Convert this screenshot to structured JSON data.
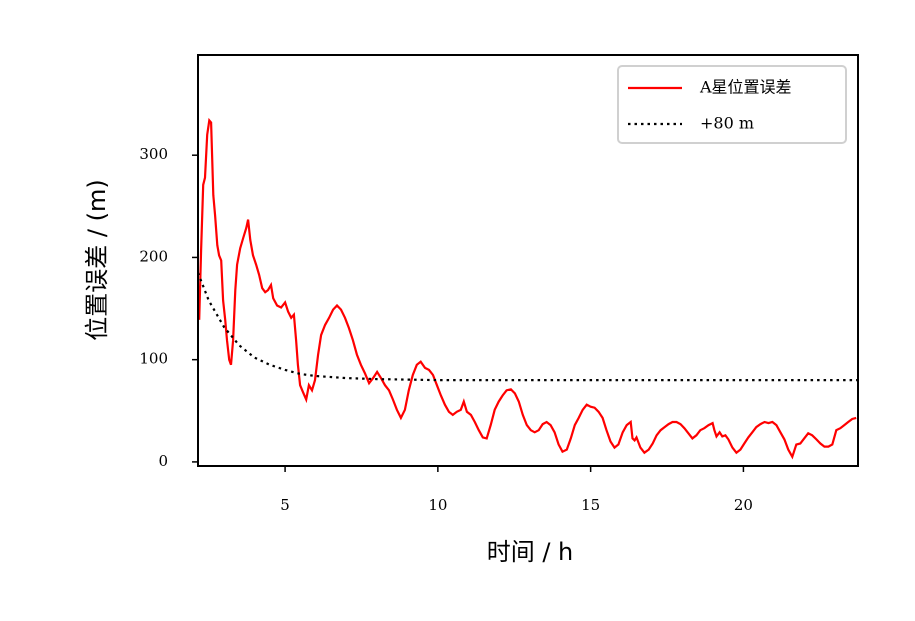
{
  "chart_data": {
    "type": "line",
    "xlabel": "时间 / h",
    "ylabel": "位置误差 / (m)",
    "xlim": [
      2.15,
      23.75
    ],
    "ylim": [
      -4,
      398
    ],
    "xticks": [
      5,
      10,
      15,
      20
    ],
    "yticks": [
      0,
      100,
      200,
      300
    ],
    "legend": "upper right",
    "series": [
      {
        "name": "A星位置误差",
        "color": "#ff0000",
        "style": "solid",
        "x": [
          2.19,
          2.25,
          2.32,
          2.38,
          2.45,
          2.52,
          2.58,
          2.65,
          2.71,
          2.78,
          2.84,
          2.91,
          2.97,
          3.04,
          3.1,
          3.17,
          3.23,
          3.3,
          3.37,
          3.43,
          3.53,
          3.63,
          3.73,
          3.79,
          3.86,
          3.95,
          4.05,
          4.15,
          4.25,
          4.35,
          4.44,
          4.54,
          4.61,
          4.74,
          4.87,
          5.0,
          5.1,
          5.2,
          5.29,
          5.36,
          5.42,
          5.49,
          5.59,
          5.69,
          5.78,
          5.88,
          5.98,
          6.08,
          6.18,
          6.31,
          6.44,
          6.57,
          6.7,
          6.83,
          6.96,
          7.09,
          7.22,
          7.35,
          7.48,
          7.61,
          7.75,
          7.88,
          8.01,
          8.14,
          8.27,
          8.4,
          8.53,
          8.66,
          8.79,
          8.92,
          9.05,
          9.18,
          9.31,
          9.44,
          9.58,
          9.71,
          9.84,
          9.97,
          10.1,
          10.23,
          10.36,
          10.49,
          10.62,
          10.75,
          10.85,
          10.95,
          11.08,
          11.21,
          11.34,
          11.47,
          11.6,
          11.73,
          11.86,
          11.99,
          12.12,
          12.25,
          12.39,
          12.52,
          12.65,
          12.78,
          12.91,
          13.04,
          13.17,
          13.3,
          13.43,
          13.56,
          13.69,
          13.82,
          13.95,
          14.08,
          14.22,
          14.35,
          14.48,
          14.61,
          14.74,
          14.87,
          15.0,
          15.13,
          15.26,
          15.39,
          15.52,
          15.65,
          15.78,
          15.91,
          16.05,
          16.18,
          16.31,
          16.37,
          16.44,
          16.5,
          16.63,
          16.76,
          16.9,
          17.03,
          17.16,
          17.29,
          17.42,
          17.55,
          17.68,
          17.81,
          17.94,
          18.07,
          18.2,
          18.33,
          18.46,
          18.59,
          18.72,
          18.86,
          18.99,
          19.05,
          19.12,
          19.22,
          19.31,
          19.41,
          19.51,
          19.64,
          19.77,
          19.9,
          20.03,
          20.16,
          20.29,
          20.42,
          20.56,
          20.69,
          20.82,
          20.95,
          21.08,
          21.21,
          21.34,
          21.47,
          21.6,
          21.73,
          21.86,
          21.99,
          22.12,
          22.25,
          22.39,
          22.52,
          22.65,
          22.78,
          22.91,
          23.04,
          23.17,
          23.3,
          23.43,
          23.56,
          23.69
        ],
        "values": [
          139,
          207,
          271,
          278,
          320,
          334,
          332,
          261,
          241,
          212,
          202,
          197,
          158,
          139,
          119,
          100,
          95,
          119,
          168,
          193,
          209,
          219,
          229,
          237,
          217,
          202,
          193,
          183,
          170,
          166,
          168,
          173,
          160,
          153,
          151,
          156,
          147,
          141,
          144,
          119,
          95,
          75,
          68,
          61,
          75,
          70,
          80,
          105,
          124,
          134,
          141,
          149,
          153,
          149,
          141,
          131,
          119,
          105,
          95,
          87,
          77,
          82,
          88,
          82,
          75,
          70,
          61,
          51,
          43,
          51,
          70,
          85,
          95,
          98,
          92,
          90,
          85,
          75,
          65,
          56,
          49,
          46,
          49,
          51,
          59,
          49,
          46,
          39,
          31,
          24,
          23,
          36,
          51,
          59,
          65,
          70,
          71,
          67,
          59,
          46,
          36,
          31,
          29,
          31,
          37,
          39,
          36,
          29,
          17,
          10,
          12,
          23,
          36,
          43,
          51,
          56,
          54,
          53,
          49,
          43,
          31,
          20,
          14,
          17,
          29,
          36,
          39,
          23,
          21,
          24,
          14,
          9,
          12,
          18,
          26,
          31,
          34,
          37,
          39,
          39,
          37,
          33,
          28,
          23,
          26,
          31,
          33,
          36,
          38,
          31,
          25,
          29,
          25,
          26,
          22,
          14,
          9,
          12,
          18,
          24,
          29,
          34,
          37,
          39,
          38,
          39,
          36,
          29,
          22,
          12,
          5,
          17,
          18,
          23,
          28,
          26,
          22,
          18,
          15,
          15,
          17,
          31,
          33,
          36,
          39,
          42,
          43
        ]
      },
      {
        "name": "+80 m",
        "color": "#000000",
        "style": "dotted",
        "x": [
          2.15,
          2.5,
          3,
          3.5,
          4,
          4.5,
          5,
          5.5,
          6,
          7,
          8,
          10,
          15,
          20,
          23.75
        ],
        "values": [
          185,
          158,
          132,
          114,
          102,
          95,
          90,
          86,
          84,
          82,
          81,
          80,
          80,
          80,
          80
        ]
      }
    ]
  }
}
